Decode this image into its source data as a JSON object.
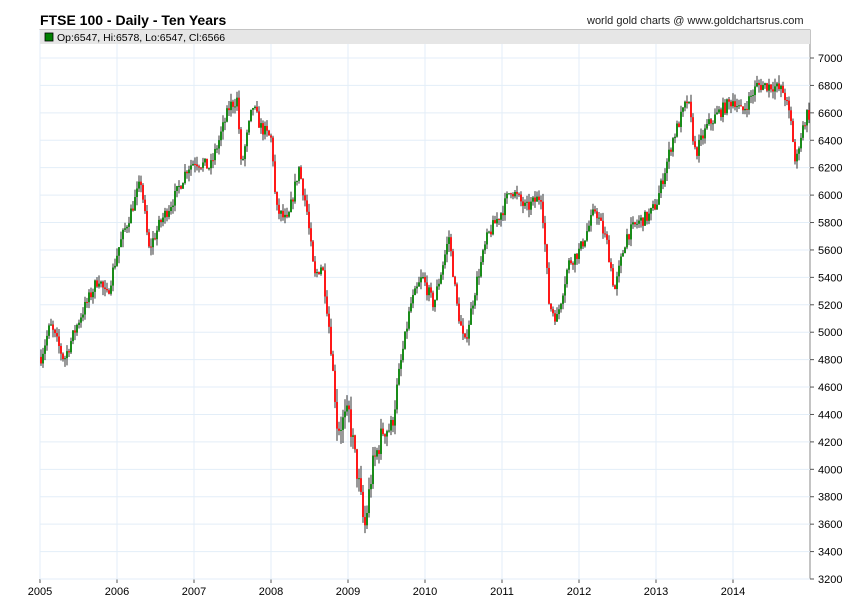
{
  "chart_data": {
    "type": "candlestick",
    "title": "FTSE 100 - Daily - Ten Years",
    "credit": "world gold charts @ www.goldchartsrus.com",
    "legend": "Op:6547, Hi:6578, Lo:6547, Cl:6566",
    "colors": {
      "up": "#008000",
      "down": "#ff0000",
      "wick": "#000000",
      "grid": "#e3eef8"
    },
    "xlim": [
      2005,
      2015
    ],
    "ylim": [
      3200,
      7100
    ],
    "x_ticks": [
      "2005",
      "2006",
      "2007",
      "2008",
      "2009",
      "2010",
      "2011",
      "2012",
      "2013",
      "2014"
    ],
    "y_ticks": [
      3200,
      3400,
      3600,
      3800,
      4000,
      4200,
      4400,
      4600,
      4800,
      5000,
      5200,
      5400,
      5600,
      5800,
      6000,
      6200,
      6400,
      6600,
      6800,
      7000
    ],
    "anchors": [
      [
        2005.0,
        4820
      ],
      [
        2005.12,
        5050
      ],
      [
        2005.3,
        4800
      ],
      [
        2005.5,
        5100
      ],
      [
        2005.75,
        5400
      ],
      [
        2005.85,
        5250
      ],
      [
        2006.0,
        5600
      ],
      [
        2006.3,
        6100
      ],
      [
        2006.4,
        5600
      ],
      [
        2006.55,
        5800
      ],
      [
        2006.75,
        6000
      ],
      [
        2006.9,
        6200
      ],
      [
        2007.0,
        6250
      ],
      [
        2007.2,
        6200
      ],
      [
        2007.45,
        6650
      ],
      [
        2007.55,
        6700
      ],
      [
        2007.6,
        6200
      ],
      [
        2007.75,
        6650
      ],
      [
        2007.85,
        6500
      ],
      [
        2008.0,
        6400
      ],
      [
        2008.05,
        5900
      ],
      [
        2008.2,
        5800
      ],
      [
        2008.35,
        6200
      ],
      [
        2008.45,
        5900
      ],
      [
        2008.55,
        5400
      ],
      [
        2008.65,
        5500
      ],
      [
        2008.75,
        5000
      ],
      [
        2008.85,
        4300
      ],
      [
        2009.0,
        4400
      ],
      [
        2009.15,
        3800
      ],
      [
        2009.2,
        3550
      ],
      [
        2009.3,
        4000
      ],
      [
        2009.45,
        4300
      ],
      [
        2009.55,
        4300
      ],
      [
        2009.65,
        4700
      ],
      [
        2009.8,
        5200
      ],
      [
        2009.95,
        5400
      ],
      [
        2010.1,
        5200
      ],
      [
        2010.3,
        5700
      ],
      [
        2010.4,
        5200
      ],
      [
        2010.5,
        4900
      ],
      [
        2010.65,
        5350
      ],
      [
        2010.8,
        5700
      ],
      [
        2011.0,
        5900
      ],
      [
        2011.1,
        6050
      ],
      [
        2011.3,
        5900
      ],
      [
        2011.5,
        6000
      ],
      [
        2011.6,
        5200
      ],
      [
        2011.7,
        5100
      ],
      [
        2011.85,
        5500
      ],
      [
        2012.0,
        5600
      ],
      [
        2012.2,
        5900
      ],
      [
        2012.35,
        5650
      ],
      [
        2012.45,
        5300
      ],
      [
        2012.6,
        5700
      ],
      [
        2012.75,
        5800
      ],
      [
        2012.9,
        5850
      ],
      [
        2013.0,
        5950
      ],
      [
        2013.2,
        6400
      ],
      [
        2013.4,
        6700
      ],
      [
        2013.5,
        6300
      ],
      [
        2013.65,
        6500
      ],
      [
        2013.8,
        6600
      ],
      [
        2014.0,
        6700
      ],
      [
        2014.1,
        6600
      ],
      [
        2014.3,
        6800
      ],
      [
        2014.5,
        6800
      ],
      [
        2014.65,
        6750
      ],
      [
        2014.75,
        6500
      ],
      [
        2014.8,
        6200
      ],
      [
        2014.85,
        6400
      ],
      [
        2014.95,
        6600
      ],
      [
        2015.0,
        6566
      ]
    ]
  }
}
